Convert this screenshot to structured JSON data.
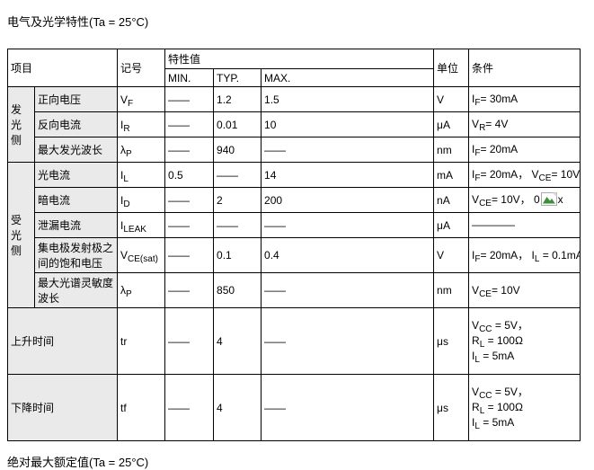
{
  "page": {
    "title": "电气及光学特性(Ta = 25°C)",
    "footer": "绝对最大额定值(Ta = 25°C)"
  },
  "colors": {
    "cell_gray": "#eaeaea",
    "border": "#000000",
    "text": "#000000",
    "broken_icon_green": "#3a8f3a"
  },
  "table": {
    "headers": {
      "item": "项目",
      "symbol": "记号",
      "value_group": "特性值",
      "min": "MIN.",
      "typ": "TYP.",
      "max": "MAX.",
      "unit": "单位",
      "condition": "条件"
    },
    "rows": [
      {
        "group": {
          "label": "发光侧",
          "span": 3
        },
        "item": "正向电压",
        "symbol": [
          {
            "t": "V"
          },
          {
            "s": "F"
          }
        ],
        "min": "——",
        "typ": "1.2",
        "max": "1.5",
        "unit": "V",
        "condition": [
          [
            {
              "t": "I"
            },
            {
              "s": "F"
            },
            {
              "t": "= 30mA"
            }
          ]
        ]
      },
      {
        "item": "反向电流",
        "symbol": [
          {
            "t": "I"
          },
          {
            "s": "R"
          }
        ],
        "min": "——",
        "typ": "0.01",
        "max": "10",
        "unit": "μA",
        "condition": [
          [
            {
              "t": "V"
            },
            {
              "s": "R"
            },
            {
              "t": "= 4V"
            }
          ]
        ]
      },
      {
        "item": "最大发光波长",
        "symbol": [
          {
            "t": "λ"
          },
          {
            "s": "P"
          }
        ],
        "min": "——",
        "typ": "940",
        "max": "——",
        "unit": "nm",
        "condition": [
          [
            {
              "t": "I"
            },
            {
              "s": "F"
            },
            {
              "t": "= 20mA"
            }
          ]
        ]
      },
      {
        "group": {
          "label": "受光侧",
          "span": 5
        },
        "item": "光电流",
        "symbol": [
          {
            "t": "I"
          },
          {
            "s": "L"
          }
        ],
        "min": "0.5",
        "typ": "——",
        "max": "14",
        "unit": "mA",
        "condition": [
          [
            {
              "t": "I"
            },
            {
              "s": "F"
            },
            {
              "t": "= 20mA， "
            },
            {
              "t": "V"
            },
            {
              "s": "CE"
            },
            {
              "t": "= 10V"
            }
          ]
        ]
      },
      {
        "item": "暗电流",
        "symbol": [
          {
            "t": "I"
          },
          {
            "s": "D"
          }
        ],
        "min": "——",
        "typ": "2",
        "max": "200",
        "unit": "nA",
        "condition": [
          [
            {
              "t": "V"
            },
            {
              "s": "CE"
            },
            {
              "t": "= 10V， 0"
            },
            {
              "icon": "broken-image-icon"
            },
            {
              "t": "x"
            }
          ]
        ]
      },
      {
        "item": "泄漏电流",
        "symbol": [
          {
            "t": "I"
          },
          {
            "s": "LEAK"
          }
        ],
        "min": "——",
        "typ": "——",
        "max": "——",
        "unit": "μA",
        "condition": [
          [
            {
              "t": "————"
            }
          ]
        ]
      },
      {
        "item": "集电极发射极之间的饱和电压",
        "symbol": [
          {
            "t": "V"
          },
          {
            "s": "CE(sat)"
          }
        ],
        "min": "——",
        "typ": "0.1",
        "max": "0.4",
        "unit": "V",
        "condition": [
          [
            {
              "t": "I"
            },
            {
              "s": "F"
            },
            {
              "t": "= 20mA， "
            },
            {
              "t": "I"
            },
            {
              "s": "L"
            },
            {
              "t": " = 0.1mA"
            }
          ]
        ]
      },
      {
        "item": "最大光谱灵敏度波长",
        "symbol": [
          {
            "t": "λ"
          },
          {
            "s": "P"
          }
        ],
        "min": "——",
        "typ": "850",
        "max": "——",
        "unit": "nm",
        "condition": [
          [
            {
              "t": "V"
            },
            {
              "s": "CE"
            },
            {
              "t": "= 10V"
            }
          ]
        ]
      },
      {
        "item": "上升时间",
        "merged": true,
        "tall": true,
        "symbol": [
          {
            "t": "tr"
          }
        ],
        "min": "——",
        "typ": "4",
        "max": "——",
        "unit": "μs",
        "condition": [
          [
            {
              "t": "V"
            },
            {
              "s": "CC"
            },
            {
              "t": " = 5V，"
            }
          ],
          [
            {
              "t": "R"
            },
            {
              "s": "L"
            },
            {
              "t": " = 100Ω"
            }
          ],
          [
            {
              "t": "I"
            },
            {
              "s": "L"
            },
            {
              "t": " = 5mA"
            }
          ]
        ]
      },
      {
        "item": "下降时间",
        "merged": true,
        "tall": true,
        "symbol": [
          {
            "t": "tf"
          }
        ],
        "min": "——",
        "typ": "4",
        "max": "——",
        "unit": "μs",
        "condition": [
          [
            {
              "t": "V"
            },
            {
              "s": "CC"
            },
            {
              "t": " = 5V，"
            }
          ],
          [
            {
              "t": "R"
            },
            {
              "s": "L"
            },
            {
              "t": " = 100Ω"
            }
          ],
          [
            {
              "t": "I"
            },
            {
              "s": "L"
            },
            {
              "t": " = 5mA"
            }
          ]
        ]
      }
    ]
  }
}
